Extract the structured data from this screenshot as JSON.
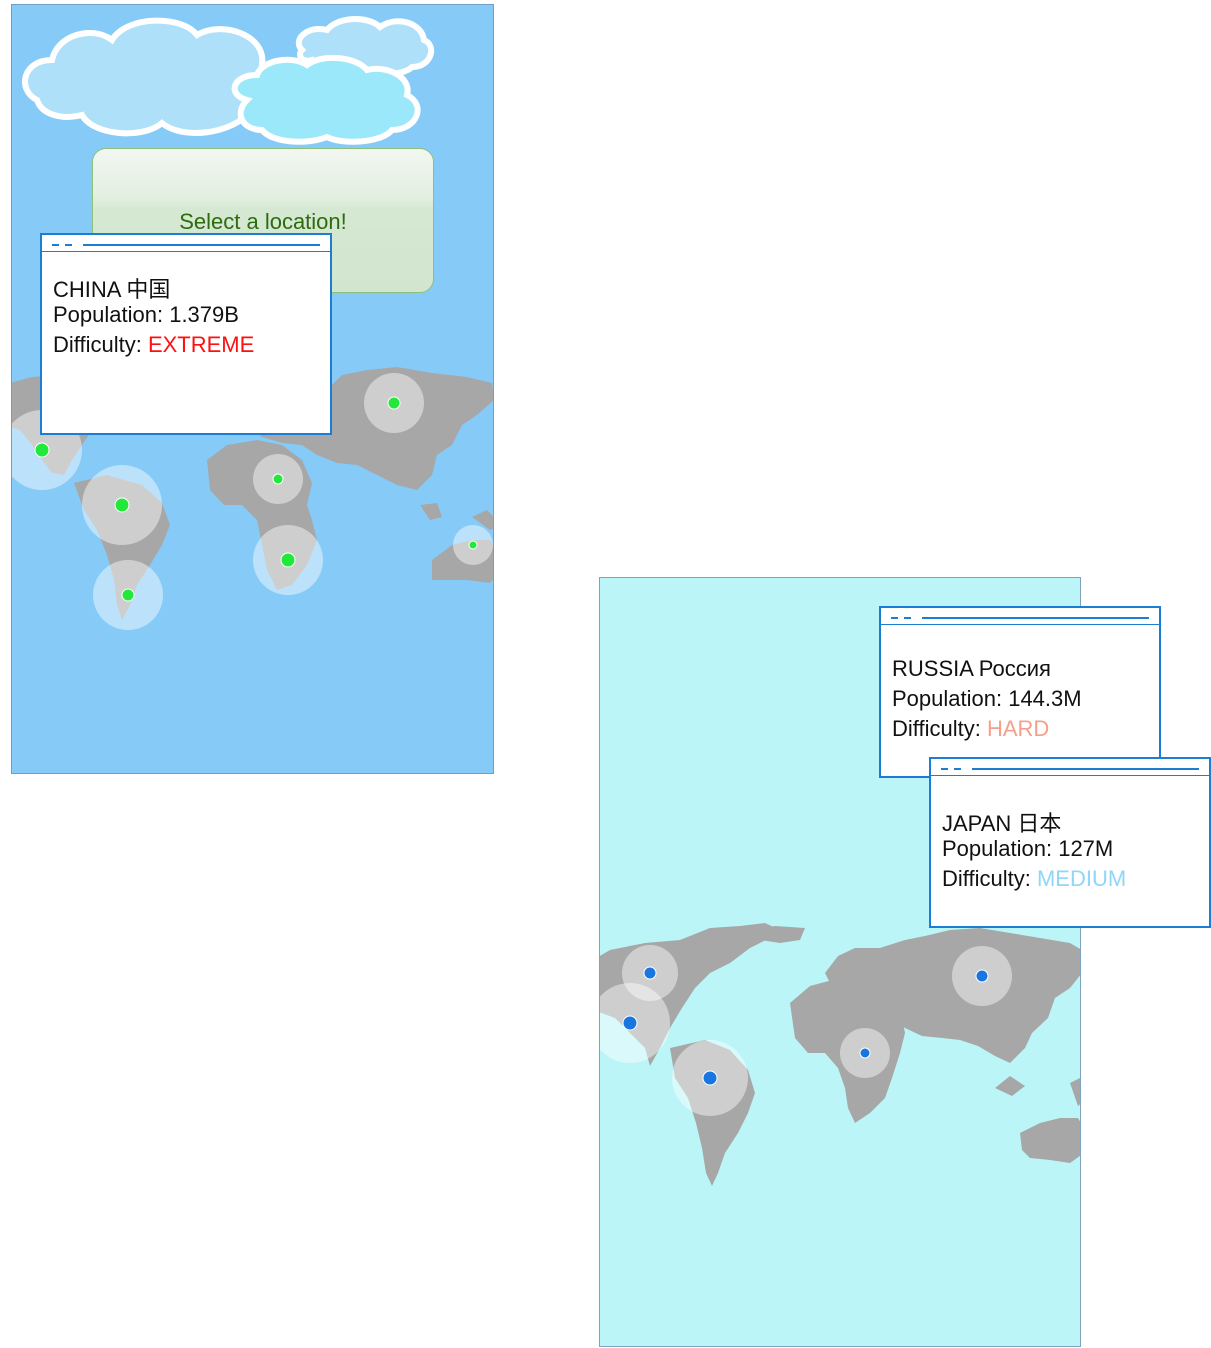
{
  "left_screen": {
    "background": "#86caf8",
    "marker_color": "#22e83a",
    "select_prompt": "Select a location!",
    "popup": {
      "country": "CHINA 中国",
      "population_label": "Population: ",
      "population": "1.379B",
      "difficulty_label": "Difficulty: ",
      "difficulty": "EXTREME",
      "difficulty_color": "#ff1010"
    }
  },
  "right_screen": {
    "background": "#bbf5f7",
    "marker_color": "#1976e0",
    "popups": [
      {
        "country": "RUSSIA Россия",
        "population_label": "Population: ",
        "population": "144.3M",
        "difficulty_label": "Difficulty: ",
        "difficulty": "HARD",
        "difficulty_color": "#f4a08a"
      },
      {
        "country": "JAPAN 日本",
        "population_label": "Population: ",
        "population": "127M",
        "difficulty_label": "Difficulty: ",
        "difficulty": "MEDIUM",
        "difficulty_color": "#8fd6f8"
      }
    ]
  }
}
